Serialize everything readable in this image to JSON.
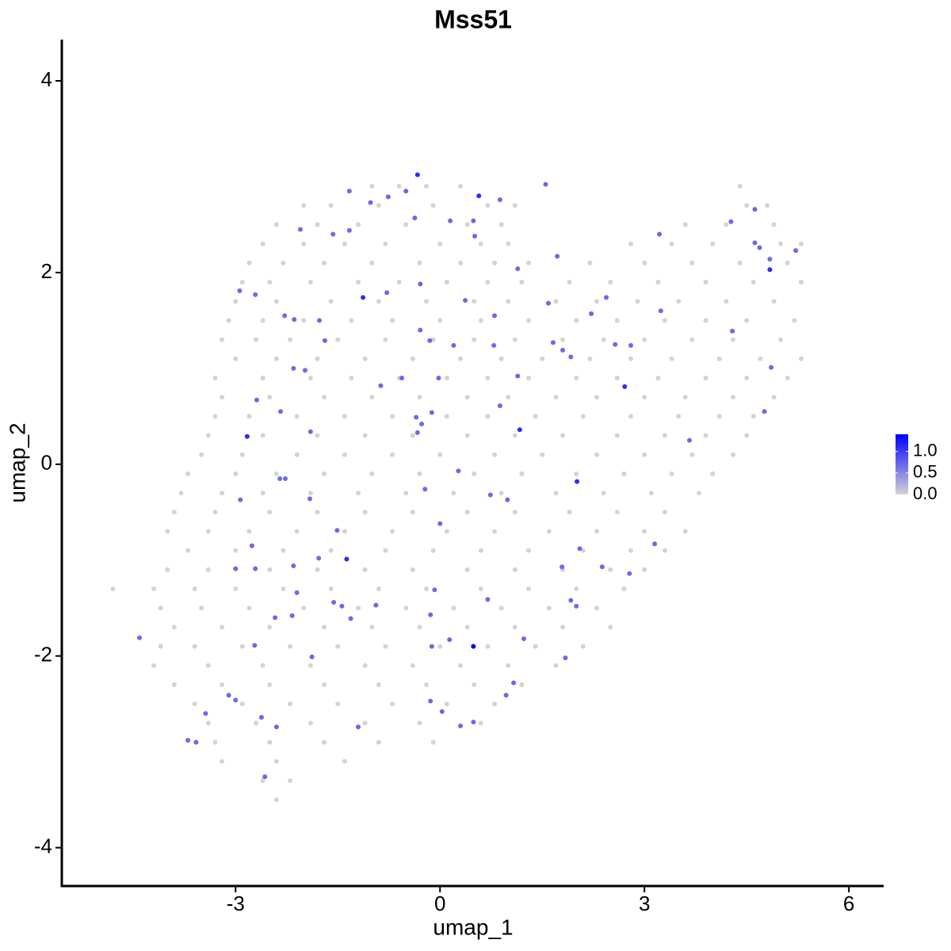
{
  "chart_data": {
    "type": "scatter",
    "title": "Mss51",
    "x_label": "umap_1",
    "y_label": "umap_2",
    "xlim": [
      -5.55,
      6.51
    ],
    "ylim": [
      -4.4,
      4.43
    ],
    "xticks": [
      -3,
      0,
      3,
      6
    ],
    "yticks": [
      -4,
      -2,
      0,
      2,
      4
    ],
    "grid": false,
    "low_color": "#d3d3d3",
    "high_color": "#0000ff",
    "color_lim": [
      0,
      1.4
    ],
    "color_ticks": [
      {
        "value": 0,
        "label": "0.0"
      },
      0.5,
      {
        "value": 1,
        "label": "1.0"
      }
    ],
    "x": [
      -1.0,
      -0.6,
      -0.2,
      0.3,
      4.4,
      -2.0,
      -1.6,
      -0.9,
      -0.1,
      0.7,
      1.1,
      4.5,
      4.8,
      -2.4,
      -1.8,
      -1.2,
      -0.5,
      0.4,
      0.9,
      3.6,
      4.2,
      4.9,
      -2.6,
      -2.0,
      -1.4,
      -0.8,
      0.0,
      0.6,
      1.0,
      2.8,
      3.4,
      4.0,
      5.0,
      5.3,
      -2.8,
      -2.3,
      -1.7,
      -1.0,
      -0.3,
      0.3,
      0.8,
      1.3,
      2.2,
      3.0,
      3.7,
      4.4,
      5.1,
      -2.9,
      -2.5,
      -1.9,
      -1.2,
      -0.6,
      0.1,
      0.7,
      1.2,
      1.9,
      2.5,
      3.2,
      3.9,
      4.6,
      5.3,
      -3.0,
      -2.4,
      -1.6,
      -0.9,
      -0.2,
      0.5,
      1.0,
      1.7,
      2.3,
      2.9,
      3.5,
      4.2,
      4.9,
      -3.1,
      -2.6,
      -2.0,
      -1.3,
      -0.7,
      0.0,
      0.6,
      1.3,
      2.0,
      2.6,
      3.3,
      3.9,
      4.5,
      5.2,
      -3.2,
      -2.7,
      -2.2,
      -1.5,
      -0.8,
      -0.1,
      0.5,
      1.1,
      1.8,
      2.4,
      3.0,
      3.7,
      4.3,
      5.0,
      -3.0,
      -2.4,
      -1.8,
      -1.1,
      -0.4,
      0.3,
      0.9,
      1.5,
      2.2,
      2.8,
      3.4,
      4.1,
      4.7,
      5.3,
      -3.3,
      -2.6,
      -1.9,
      -1.3,
      -0.6,
      0.1,
      0.7,
      1.3,
      2.0,
      2.6,
      3.2,
      3.9,
      4.5,
      5.1,
      -3.2,
      -2.5,
      -1.7,
      -1.0,
      -0.3,
      0.4,
      1.0,
      1.7,
      2.3,
      3.0,
      3.6,
      4.3,
      4.9,
      -3.3,
      -2.8,
      -2.1,
      -1.4,
      -0.7,
      0.1,
      0.7,
      1.4,
      2.1,
      2.8,
      3.5,
      4.1,
      4.6,
      -3.4,
      -2.6,
      -1.8,
      -1.1,
      -0.4,
      0.4,
      1.1,
      1.8,
      2.6,
      3.3,
      3.9,
      4.5,
      -3.5,
      -2.9,
      -2.1,
      -1.4,
      -0.7,
      0.0,
      0.8,
      1.5,
      2.3,
      3.0,
      3.7,
      4.3,
      -3.7,
      -3.0,
      -2.4,
      -1.7,
      -1.0,
      -0.3,
      0.5,
      1.2,
      2.0,
      2.7,
      3.4,
      4.0,
      -3.8,
      -3.2,
      -2.6,
      -1.9,
      -1.2,
      -0.5,
      0.2,
      0.9,
      1.7,
      2.4,
      3.1,
      3.8,
      -3.9,
      -3.3,
      -2.5,
      -1.8,
      -1.1,
      -0.4,
      0.4,
      1.1,
      1.9,
      2.6,
      3.3,
      -4.0,
      -3.4,
      -2.8,
      -2.1,
      -1.4,
      -0.7,
      0.1,
      0.8,
      1.6,
      2.3,
      3.0,
      3.6,
      -3.7,
      -3.0,
      -2.3,
      -1.6,
      -0.8,
      -0.1,
      0.6,
      1.3,
      2.1,
      2.8,
      3.3,
      -4.0,
      -3.4,
      -2.5,
      -1.8,
      -1.1,
      -0.4,
      0.4,
      1.1,
      1.8,
      2.5,
      3.0,
      -4.8,
      -4.2,
      -3.6,
      -3.0,
      -2.3,
      -1.6,
      -0.9,
      -0.2,
      0.6,
      1.3,
      2.0,
      2.7,
      -4.1,
      -3.5,
      -2.8,
      -2.0,
      -1.2,
      -0.5,
      0.2,
      0.9,
      1.6,
      2.3,
      -3.9,
      -3.2,
      -2.5,
      -1.7,
      -1.0,
      -0.3,
      0.4,
      1.1,
      1.8,
      2.5,
      -4.1,
      -3.6,
      -2.9,
      -2.2,
      -1.5,
      -0.8,
      0.0,
      0.7,
      1.4,
      2.1,
      -4.2,
      -3.4,
      -2.6,
      -1.9,
      -1.1,
      -0.4,
      0.3,
      1.0,
      1.7,
      -3.9,
      -3.2,
      -2.5,
      -1.7,
      -0.9,
      -0.2,
      0.5,
      1.2,
      -3.6,
      -2.9,
      -2.2,
      -1.5,
      -0.7,
      0.1,
      0.8,
      -3.4,
      -2.7,
      -1.9,
      -1.1,
      -0.3,
      0.6,
      -3.3,
      -2.5,
      -1.7,
      -0.9,
      -0.1,
      -3.2,
      -2.4,
      -1.4,
      -2.6,
      -2.2,
      -2.4,
      -2.94,
      -2.71,
      -2.05,
      -1.57,
      -1.33,
      -1.33,
      -1.02,
      -0.76,
      -0.5,
      -0.33,
      -0.37,
      0.15,
      0.49,
      0.57,
      0.88,
      0.51,
      1.55,
      1.72,
      1.14,
      -0.29,
      0.37,
      -1.13,
      -0.78,
      -1.77,
      -2.28,
      -2.14,
      -1.69,
      -0.29,
      -0.15,
      0.2,
      0.8,
      0.79,
      1.59,
      1.66,
      1.8,
      1.92,
      2.22,
      2.44,
      2.57,
      2.8,
      3.22,
      3.24,
      4.27,
      4.62,
      4.62,
      4.69,
      4.84,
      4.84,
      5.22,
      4.29,
      4.86,
      4.76,
      3.66,
      2.71,
      1.14,
      1.17,
      0.88,
      -0.02,
      -0.56,
      -0.87,
      -0.12,
      -0.27,
      -0.35,
      -0.33,
      -2.15,
      -1.98,
      -1.9,
      -2.34,
      -2.69,
      -2.83,
      -2.35,
      -2.27,
      -2.93,
      -1.91,
      -3.0,
      -2.71,
      -2.76,
      -2.15,
      -1.78,
      -1.37,
      -1.51,
      -0.22,
      0.0,
      0.27,
      0.74,
      0.99,
      2.01,
      2.05,
      1.92,
      2.0,
      1.79,
      2.38,
      2.78,
      3.15,
      0.7,
      -0.08,
      -0.14,
      -0.12,
      0.14,
      0.49,
      1.23,
      1.84,
      1.08,
      0.97,
      -0.14,
      0.03,
      0.3,
      0.49,
      -1.2,
      -0.94,
      -1.31,
      -1.44,
      -1.56,
      -2.1,
      -2.17,
      -2.42,
      -2.72,
      -1.88,
      -3.1,
      -3.0,
      -3.44,
      -3.7,
      -3.58,
      -2.62,
      -2.4,
      -2.57,
      -4.41
    ],
    "y": [
      2.9,
      2.9,
      2.9,
      2.9,
      2.9,
      2.7,
      2.7,
      2.7,
      2.7,
      2.7,
      2.7,
      2.7,
      2.7,
      2.5,
      2.5,
      2.5,
      2.5,
      2.5,
      2.5,
      2.5,
      2.5,
      2.5,
      2.3,
      2.3,
      2.3,
      2.3,
      2.3,
      2.3,
      2.3,
      2.3,
      2.3,
      2.3,
      2.3,
      2.3,
      2.1,
      2.1,
      2.1,
      2.1,
      2.1,
      2.1,
      2.1,
      2.1,
      2.1,
      2.1,
      2.1,
      2.1,
      2.1,
      1.9,
      1.9,
      1.9,
      1.9,
      1.9,
      1.9,
      1.9,
      1.9,
      1.9,
      1.9,
      1.9,
      1.9,
      1.9,
      1.9,
      1.7,
      1.7,
      1.7,
      1.7,
      1.7,
      1.7,
      1.7,
      1.7,
      1.7,
      1.7,
      1.7,
      1.7,
      1.7,
      1.5,
      1.5,
      1.5,
      1.5,
      1.5,
      1.5,
      1.5,
      1.5,
      1.5,
      1.5,
      1.5,
      1.5,
      1.5,
      1.5,
      1.3,
      1.3,
      1.3,
      1.3,
      1.3,
      1.3,
      1.3,
      1.3,
      1.3,
      1.3,
      1.3,
      1.3,
      1.3,
      1.3,
      1.1,
      1.1,
      1.1,
      1.1,
      1.1,
      1.1,
      1.1,
      1.1,
      1.1,
      1.1,
      1.1,
      1.1,
      1.1,
      1.1,
      0.9,
      0.9,
      0.9,
      0.9,
      0.9,
      0.9,
      0.9,
      0.9,
      0.9,
      0.9,
      0.9,
      0.9,
      0.9,
      0.9,
      0.7,
      0.7,
      0.7,
      0.7,
      0.7,
      0.7,
      0.7,
      0.7,
      0.7,
      0.7,
      0.7,
      0.7,
      0.7,
      0.5,
      0.5,
      0.5,
      0.5,
      0.5,
      0.5,
      0.5,
      0.5,
      0.5,
      0.5,
      0.5,
      0.5,
      0.5,
      0.3,
      0.3,
      0.3,
      0.3,
      0.3,
      0.3,
      0.3,
      0.3,
      0.3,
      0.3,
      0.3,
      0.3,
      0.1,
      0.1,
      0.1,
      0.1,
      0.1,
      0.1,
      0.1,
      0.1,
      0.1,
      0.1,
      0.1,
      0.1,
      -0.1,
      -0.1,
      -0.1,
      -0.1,
      -0.1,
      -0.1,
      -0.1,
      -0.1,
      -0.1,
      -0.1,
      -0.1,
      -0.1,
      -0.3,
      -0.3,
      -0.3,
      -0.3,
      -0.3,
      -0.3,
      -0.3,
      -0.3,
      -0.3,
      -0.3,
      -0.3,
      -0.3,
      -0.5,
      -0.5,
      -0.5,
      -0.5,
      -0.5,
      -0.5,
      -0.5,
      -0.5,
      -0.5,
      -0.5,
      -0.5,
      -0.7,
      -0.7,
      -0.7,
      -0.7,
      -0.7,
      -0.7,
      -0.7,
      -0.7,
      -0.7,
      -0.7,
      -0.7,
      -0.7,
      -0.9,
      -0.9,
      -0.9,
      -0.9,
      -0.9,
      -0.9,
      -0.9,
      -0.9,
      -0.9,
      -0.9,
      -0.9,
      -1.1,
      -1.1,
      -1.1,
      -1.1,
      -1.1,
      -1.1,
      -1.1,
      -1.1,
      -1.1,
      -1.1,
      -1.1,
      -1.3,
      -1.3,
      -1.3,
      -1.3,
      -1.3,
      -1.3,
      -1.3,
      -1.3,
      -1.3,
      -1.3,
      -1.3,
      -1.3,
      -1.5,
      -1.5,
      -1.5,
      -1.5,
      -1.5,
      -1.5,
      -1.5,
      -1.5,
      -1.5,
      -1.5,
      -1.7,
      -1.7,
      -1.7,
      -1.7,
      -1.7,
      -1.7,
      -1.7,
      -1.7,
      -1.7,
      -1.7,
      -1.9,
      -1.9,
      -1.9,
      -1.9,
      -1.9,
      -1.9,
      -1.9,
      -1.9,
      -1.9,
      -1.9,
      -2.1,
      -2.1,
      -2.1,
      -2.1,
      -2.1,
      -2.1,
      -2.1,
      -2.1,
      -2.1,
      -2.3,
      -2.3,
      -2.3,
      -2.3,
      -2.3,
      -2.3,
      -2.3,
      -2.3,
      -2.5,
      -2.5,
      -2.5,
      -2.5,
      -2.5,
      -2.5,
      -2.5,
      -2.7,
      -2.7,
      -2.7,
      -2.7,
      -2.7,
      -2.7,
      -2.9,
      -2.9,
      -2.9,
      -2.9,
      -2.9,
      -3.1,
      -3.1,
      -3.1,
      -3.3,
      -3.3,
      -3.5,
      1.81,
      1.77,
      2.45,
      2.4,
      2.44,
      2.85,
      2.73,
      2.79,
      2.85,
      3.02,
      2.57,
      2.54,
      2.54,
      2.8,
      2.76,
      2.38,
      2.92,
      2.17,
      2.04,
      1.88,
      1.71,
      1.74,
      1.79,
      1.5,
      1.55,
      1.51,
      1.29,
      1.4,
      1.29,
      1.24,
      1.55,
      1.24,
      1.68,
      1.27,
      1.19,
      1.12,
      1.57,
      1.74,
      1.25,
      1.24,
      2.4,
      1.6,
      2.53,
      2.66,
      2.31,
      2.26,
      2.14,
      2.03,
      2.23,
      1.39,
      1.01,
      0.55,
      0.25,
      0.81,
      0.92,
      0.36,
      0.61,
      0.9,
      0.9,
      0.82,
      0.54,
      0.42,
      0.49,
      0.33,
      1.0,
      0.98,
      0.34,
      0.55,
      0.67,
      0.29,
      -0.15,
      -0.15,
      -0.37,
      -0.36,
      -1.09,
      -1.09,
      -0.85,
      -1.06,
      -0.98,
      -0.99,
      -0.69,
      -0.26,
      -0.62,
      -0.07,
      -0.32,
      -0.37,
      -0.18,
      -0.88,
      -1.42,
      -1.48,
      -1.07,
      -1.07,
      -1.14,
      -0.83,
      -1.41,
      -1.31,
      -1.57,
      -1.9,
      -1.83,
      -1.9,
      -1.82,
      -2.02,
      -2.28,
      -2.41,
      -2.47,
      -2.58,
      -2.73,
      -2.69,
      -2.74,
      -1.47,
      -1.61,
      -1.48,
      -1.44,
      -1.34,
      -1.58,
      -1.6,
      -1.89,
      -2.01,
      -2.41,
      -2.46,
      -2.6,
      -2.88,
      -2.9,
      -2.64,
      -2.74,
      -3.26,
      -1.81
    ],
    "values": [
      0,
      0,
      0,
      0,
      0,
      0,
      0,
      0,
      0,
      0,
      0,
      0,
      0,
      0,
      0,
      0,
      0,
      0,
      0,
      0,
      0,
      0,
      0,
      0,
      0,
      0,
      0,
      0,
      0,
      0,
      0,
      0,
      0,
      0,
      0,
      0,
      0,
      0,
      0,
      0,
      0,
      0,
      0,
      0,
      0,
      0,
      0,
      0,
      0,
      0,
      0,
      0,
      0,
      0,
      0,
      0,
      0,
      0,
      0,
      0,
      0,
      0,
      0,
      0,
      0,
      0,
      0,
      0,
      0,
      0,
      0,
      0,
      0,
      0,
      0,
      0,
      0,
      0,
      0,
      0,
      0,
      0,
      0,
      0,
      0,
      0,
      0,
      0,
      0,
      0,
      0,
      0,
      0,
      0,
      0,
      0,
      0,
      0,
      0,
      0,
      0,
      0,
      0,
      0,
      0,
      0,
      0,
      0,
      0,
      0,
      0,
      0,
      0,
      0,
      0,
      0,
      0,
      0,
      0,
      0,
      0,
      0,
      0,
      0,
      0,
      0,
      0,
      0,
      0,
      0,
      0,
      0,
      0,
      0,
      0,
      0,
      0,
      0,
      0,
      0,
      0,
      0,
      0,
      0,
      0,
      0,
      0,
      0,
      0,
      0,
      0,
      0,
      0,
      0,
      0,
      0,
      0,
      0,
      0,
      0,
      0,
      0,
      0,
      0,
      0,
      0,
      0,
      0,
      0,
      0,
      0,
      0,
      0,
      0,
      0,
      0,
      0,
      0,
      0,
      0,
      0,
      0,
      0,
      0,
      0,
      0,
      0,
      0,
      0,
      0,
      0,
      0,
      0,
      0,
      0,
      0,
      0,
      0,
      0,
      0,
      0,
      0,
      0,
      0,
      0,
      0,
      0,
      0,
      0,
      0,
      0,
      0,
      0,
      0,
      0,
      0,
      0,
      0,
      0,
      0,
      0,
      0,
      0,
      0,
      0,
      0,
      0,
      0,
      0,
      0,
      0,
      0,
      0,
      0,
      0,
      0,
      0,
      0,
      0,
      0,
      0,
      0,
      0,
      0,
      0,
      0,
      0,
      0,
      0,
      0,
      0,
      0,
      0,
      0,
      0,
      0,
      0,
      0,
      0,
      0,
      0,
      0,
      0,
      0,
      0,
      0,
      0,
      0,
      0,
      0,
      0,
      0,
      0,
      0,
      0,
      0,
      0,
      0,
      0,
      0,
      0,
      0,
      0,
      0,
      0,
      0,
      0,
      0,
      0,
      0,
      0,
      0,
      0,
      0,
      0,
      0,
      0,
      0,
      0,
      0,
      0,
      0,
      0,
      0,
      0,
      0,
      0,
      0,
      0,
      0,
      0,
      0,
      0,
      0,
      0,
      0,
      0,
      0,
      0,
      0,
      0,
      0,
      0,
      0,
      0,
      0,
      0,
      0,
      0,
      0,
      0,
      0,
      0.7,
      0.7,
      0.7,
      0.7,
      0.7,
      0.7,
      0.7,
      0.7,
      0.7,
      1.1,
      0.7,
      0.7,
      0.7,
      1.1,
      0.7,
      0.7,
      0.7,
      0.7,
      0.7,
      0.7,
      0.7,
      1.1,
      0.7,
      0.7,
      0.7,
      0.7,
      0.7,
      0.7,
      0.7,
      0.7,
      0.7,
      0.7,
      0.7,
      0.7,
      0.7,
      0.7,
      0.7,
      0.7,
      0.7,
      0.7,
      0.7,
      0.7,
      0.7,
      0.7,
      0.7,
      0.7,
      0.7,
      1.1,
      0.7,
      0.7,
      0.7,
      0.7,
      0.7,
      1.1,
      0.7,
      1.1,
      0.7,
      0.7,
      0.7,
      0.7,
      0.7,
      0.7,
      0.7,
      0.7,
      0.7,
      0.7,
      0.7,
      0.7,
      0.7,
      1.1,
      0.7,
      0.7,
      0.7,
      0.7,
      0.7,
      0.7,
      0.7,
      0.7,
      0.7,
      1.1,
      0.7,
      0.7,
      0.7,
      0.7,
      0.7,
      0.7,
      1.1,
      0.7,
      0.7,
      0.7,
      0.7,
      0.7,
      0.7,
      0.7,
      0.7,
      0.7,
      0.7,
      0.7,
      0.7,
      1.4,
      0.7,
      0.7,
      0.7,
      0.7,
      0.7,
      0.7,
      0.7,
      0.7,
      0.7,
      0.7,
      0.7,
      0.7,
      0.7,
      0.7,
      0.7,
      0.7,
      0.7,
      0.7,
      0.7,
      0.7,
      0.7,
      0.7,
      0.7,
      0.7,
      0.7,
      0.7,
      0.7
    ]
  }
}
